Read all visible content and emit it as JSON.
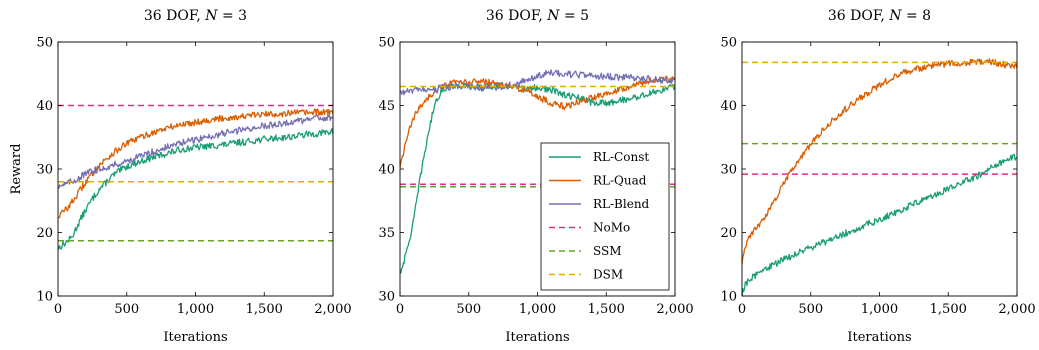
{
  "chart_data": [
    {
      "type": "line",
      "title": "36 DOF, N = 3",
      "title_prefix": "36 DOF, ",
      "title_var": "N",
      "title_rest": " = 3",
      "xlabel": "Iterations",
      "ylabel": "Reward",
      "xlim": [
        0,
        2000
      ],
      "ylim": [
        10,
        50
      ],
      "xticks": [
        0,
        500,
        1000,
        1500,
        2000
      ],
      "xtick_labels": [
        "0",
        "500",
        "1,000",
        "1,500",
        "2,000"
      ],
      "yticks": [
        10,
        20,
        30,
        40,
        50
      ],
      "ytick_labels": [
        "10",
        "20",
        "30",
        "40",
        "50"
      ],
      "grid": false,
      "legend": "none",
      "series": [
        {
          "name": "RL-Const",
          "color": "#1b9e77",
          "style": "solid",
          "x": [
            0,
            50,
            100,
            150,
            200,
            250,
            300,
            400,
            500,
            600,
            700,
            800,
            900,
            1000,
            1100,
            1200,
            1300,
            1400,
            1500,
            1600,
            1700,
            1800,
            1900,
            2000
          ],
          "y": [
            17.5,
            18.3,
            19.2,
            21.5,
            23.5,
            25.3,
            26.8,
            29.0,
            30.4,
            31.2,
            31.9,
            32.5,
            33.1,
            33.4,
            33.6,
            33.8,
            34.1,
            34.4,
            34.7,
            34.9,
            35.1,
            35.4,
            35.6,
            35.9
          ]
        },
        {
          "name": "RL-Quad",
          "color": "#d95f02",
          "style": "solid",
          "x": [
            0,
            50,
            100,
            150,
            200,
            250,
            300,
            400,
            500,
            600,
            700,
            800,
            900,
            1000,
            1100,
            1200,
            1300,
            1400,
            1500,
            1600,
            1700,
            1800,
            1900,
            2000
          ],
          "y": [
            22.5,
            23.5,
            24.7,
            26.3,
            27.9,
            29.3,
            30.6,
            32.5,
            34.0,
            35.0,
            35.8,
            36.5,
            37.0,
            37.4,
            37.7,
            38.0,
            38.2,
            38.4,
            38.6,
            38.7,
            38.8,
            38.9,
            38.9,
            39.0
          ]
        },
        {
          "name": "RL-Blend",
          "color": "#7570b3",
          "style": "solid",
          "x": [
            0,
            50,
            100,
            150,
            200,
            250,
            300,
            400,
            500,
            600,
            700,
            800,
            900,
            1000,
            1100,
            1200,
            1300,
            1400,
            1500,
            1600,
            1700,
            1800,
            1900,
            2000
          ],
          "y": [
            27.4,
            27.6,
            28.0,
            28.6,
            29.2,
            29.7,
            30.0,
            30.6,
            31.2,
            32.0,
            32.8,
            33.5,
            34.1,
            34.6,
            35.1,
            35.6,
            36.0,
            36.4,
            36.8,
            37.1,
            37.4,
            37.7,
            38.0,
            38.2
          ]
        },
        {
          "name": "NoMo",
          "color": "#e7298a",
          "style": "dashed",
          "x": [
            0,
            2000
          ],
          "y": [
            40.0,
            40.0
          ]
        },
        {
          "name": "SSM",
          "color": "#66a61e",
          "style": "dashed",
          "x": [
            0,
            2000
          ],
          "y": [
            18.7,
            18.7
          ]
        },
        {
          "name": "DSM",
          "color": "#e6ab02",
          "style": "dashed",
          "x": [
            0,
            2000
          ],
          "y": [
            28.0,
            28.0
          ]
        }
      ]
    },
    {
      "type": "line",
      "title": "36 DOF, N = 5",
      "title_prefix": "36 DOF, ",
      "title_var": "N",
      "title_rest": " = 5",
      "xlabel": "Iterations",
      "ylabel": "",
      "xlim": [
        0,
        2000
      ],
      "ylim": [
        30,
        50
      ],
      "xticks": [
        0,
        500,
        1000,
        1500,
        2000
      ],
      "xtick_labels": [
        "0",
        "500",
        "1,000",
        "1,500",
        "2,000"
      ],
      "yticks": [
        30,
        35,
        40,
        45,
        50
      ],
      "ytick_labels": [
        "30",
        "35",
        "40",
        "45",
        "50"
      ],
      "grid": false,
      "legend": "lower-right",
      "series": [
        {
          "name": "RL-Const",
          "color": "#1b9e77",
          "style": "solid",
          "x": [
            0,
            50,
            100,
            150,
            200,
            250,
            300,
            350,
            400,
            500,
            600,
            700,
            800,
            900,
            1000,
            1100,
            1200,
            1300,
            1400,
            1500,
            1600,
            1700,
            1800,
            1900,
            2000
          ],
          "y": [
            31.8,
            33.5,
            36.0,
            39.5,
            42.5,
            45.0,
            46.2,
            46.5,
            46.6,
            46.5,
            46.4,
            46.6,
            46.5,
            46.3,
            46.4,
            46.2,
            45.8,
            45.6,
            45.2,
            45.2,
            45.4,
            45.6,
            45.9,
            46.2,
            46.5
          ]
        },
        {
          "name": "RL-Quad",
          "color": "#d95f02",
          "style": "solid",
          "x": [
            0,
            50,
            100,
            150,
            200,
            250,
            300,
            350,
            400,
            500,
            600,
            700,
            800,
            900,
            1000,
            1100,
            1200,
            1300,
            1400,
            1500,
            1600,
            1700,
            1800,
            1900,
            2000
          ],
          "y": [
            40.0,
            42.5,
            44.0,
            45.0,
            45.6,
            46.0,
            46.4,
            46.6,
            46.8,
            46.8,
            46.9,
            46.7,
            46.5,
            46.3,
            45.7,
            45.2,
            44.9,
            45.3,
            45.6,
            46.0,
            46.3,
            46.6,
            46.9,
            47.1,
            47.0
          ]
        },
        {
          "name": "RL-Blend",
          "color": "#7570b3",
          "style": "solid",
          "x": [
            0,
            50,
            100,
            150,
            200,
            250,
            300,
            350,
            400,
            500,
            600,
            700,
            800,
            900,
            1000,
            1100,
            1200,
            1300,
            1400,
            1500,
            1600,
            1700,
            1800,
            1900,
            2000
          ],
          "y": [
            46.0,
            46.1,
            46.2,
            46.2,
            46.3,
            46.3,
            46.4,
            46.4,
            46.5,
            46.5,
            46.4,
            46.4,
            46.6,
            46.9,
            47.3,
            47.6,
            47.5,
            47.4,
            47.3,
            47.3,
            47.2,
            47.2,
            47.1,
            47.0,
            47.0
          ]
        },
        {
          "name": "NoMo",
          "color": "#e7298a",
          "style": "dashed",
          "x": [
            0,
            2000
          ],
          "y": [
            38.8,
            38.8
          ]
        },
        {
          "name": "SSM",
          "color": "#66a61e",
          "style": "dashed",
          "x": [
            0,
            2000
          ],
          "y": [
            38.6,
            38.6
          ]
        },
        {
          "name": "DSM",
          "color": "#e6ab02",
          "style": "dashed",
          "x": [
            0,
            2000
          ],
          "y": [
            46.5,
            46.5
          ]
        }
      ]
    },
    {
      "type": "line",
      "title": "36 DOF, N = 8",
      "title_prefix": "36 DOF, ",
      "title_var": "N",
      "title_rest": " = 8",
      "xlabel": "Iterations",
      "ylabel": "",
      "xlim": [
        0,
        2000
      ],
      "ylim": [
        10,
        50
      ],
      "xticks": [
        0,
        500,
        1000,
        1500,
        2000
      ],
      "xtick_labels": [
        "0",
        "500",
        "1,000",
        "1,500",
        "2,000"
      ],
      "yticks": [
        10,
        20,
        30,
        40,
        50
      ],
      "ytick_labels": [
        "10",
        "20",
        "30",
        "40",
        "50"
      ],
      "grid": false,
      "legend": "none",
      "series": [
        {
          "name": "RL-Const",
          "color": "#1b9e77",
          "style": "solid",
          "x": [
            0,
            30,
            60,
            100,
            150,
            200,
            300,
            400,
            500,
            600,
            700,
            800,
            900,
            1000,
            1100,
            1200,
            1300,
            1400,
            1500,
            1600,
            1700,
            1800,
            1900,
            2000
          ],
          "y": [
            10.5,
            12.0,
            12.8,
            13.3,
            14.0,
            14.6,
            15.7,
            16.7,
            17.6,
            18.5,
            19.4,
            20.3,
            21.2,
            22.0,
            23.0,
            24.0,
            25.0,
            26.0,
            26.9,
            27.8,
            28.8,
            30.0,
            31.2,
            32.0
          ]
        },
        {
          "name": "RL-Quad",
          "color": "#d95f02",
          "style": "solid",
          "x": [
            0,
            30,
            60,
            100,
            150,
            200,
            250,
            300,
            350,
            400,
            500,
            600,
            700,
            800,
            900,
            1000,
            1100,
            1200,
            1300,
            1400,
            1500,
            1600,
            1700,
            1800,
            1900,
            2000
          ],
          "y": [
            15.5,
            18.0,
            19.5,
            20.5,
            22.0,
            23.5,
            25.5,
            27.5,
            29.5,
            31.0,
            33.8,
            36.5,
            38.5,
            40.3,
            41.8,
            43.2,
            44.5,
            45.3,
            45.9,
            46.3,
            46.6,
            46.7,
            46.8,
            46.9,
            46.5,
            46.0
          ]
        },
        {
          "name": "NoMo",
          "color": "#e7298a",
          "style": "dashed",
          "x": [
            0,
            2000
          ],
          "y": [
            29.2,
            29.2
          ]
        },
        {
          "name": "SSM",
          "color": "#66a61e",
          "style": "dashed",
          "x": [
            0,
            2000
          ],
          "y": [
            34.0,
            34.0
          ]
        },
        {
          "name": "DSM",
          "color": "#e6ab02",
          "style": "dashed",
          "x": [
            0,
            2000
          ],
          "y": [
            46.8,
            46.8
          ]
        }
      ]
    }
  ],
  "legend": {
    "entries": [
      {
        "label": "RL-Const",
        "color": "#1b9e77",
        "style": "solid"
      },
      {
        "label": "RL-Quad",
        "color": "#d95f02",
        "style": "solid"
      },
      {
        "label": "RL-Blend",
        "color": "#7570b3",
        "style": "solid"
      },
      {
        "label": "NoMo",
        "color": "#e7298a",
        "style": "dashed"
      },
      {
        "label": "SSM",
        "color": "#66a61e",
        "style": "dashed"
      },
      {
        "label": "DSM",
        "color": "#e6ab02",
        "style": "dashed"
      }
    ]
  }
}
